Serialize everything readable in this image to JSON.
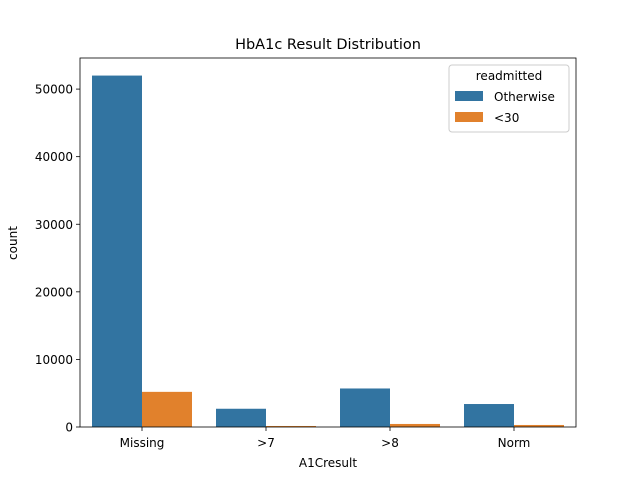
{
  "chart_data": {
    "type": "bar",
    "title": "HbA1c Result Distribution",
    "xlabel": "A1Cresult",
    "ylabel": "count",
    "categories": [
      "Missing",
      ">7",
      ">8",
      "Norm"
    ],
    "series": [
      {
        "name": "Otherwise",
        "color": "#3274a1",
        "values": [
          52000,
          2700,
          5700,
          3400
        ]
      },
      {
        "name": "<30",
        "color": "#e1812c",
        "values": [
          5200,
          150,
          450,
          300
        ]
      }
    ],
    "ylim": [
      0,
      54600
    ],
    "yticks": [
      0,
      10000,
      20000,
      30000,
      40000,
      50000
    ],
    "legend": {
      "title": "readmitted",
      "placement": "top-right"
    },
    "grid": false
  }
}
